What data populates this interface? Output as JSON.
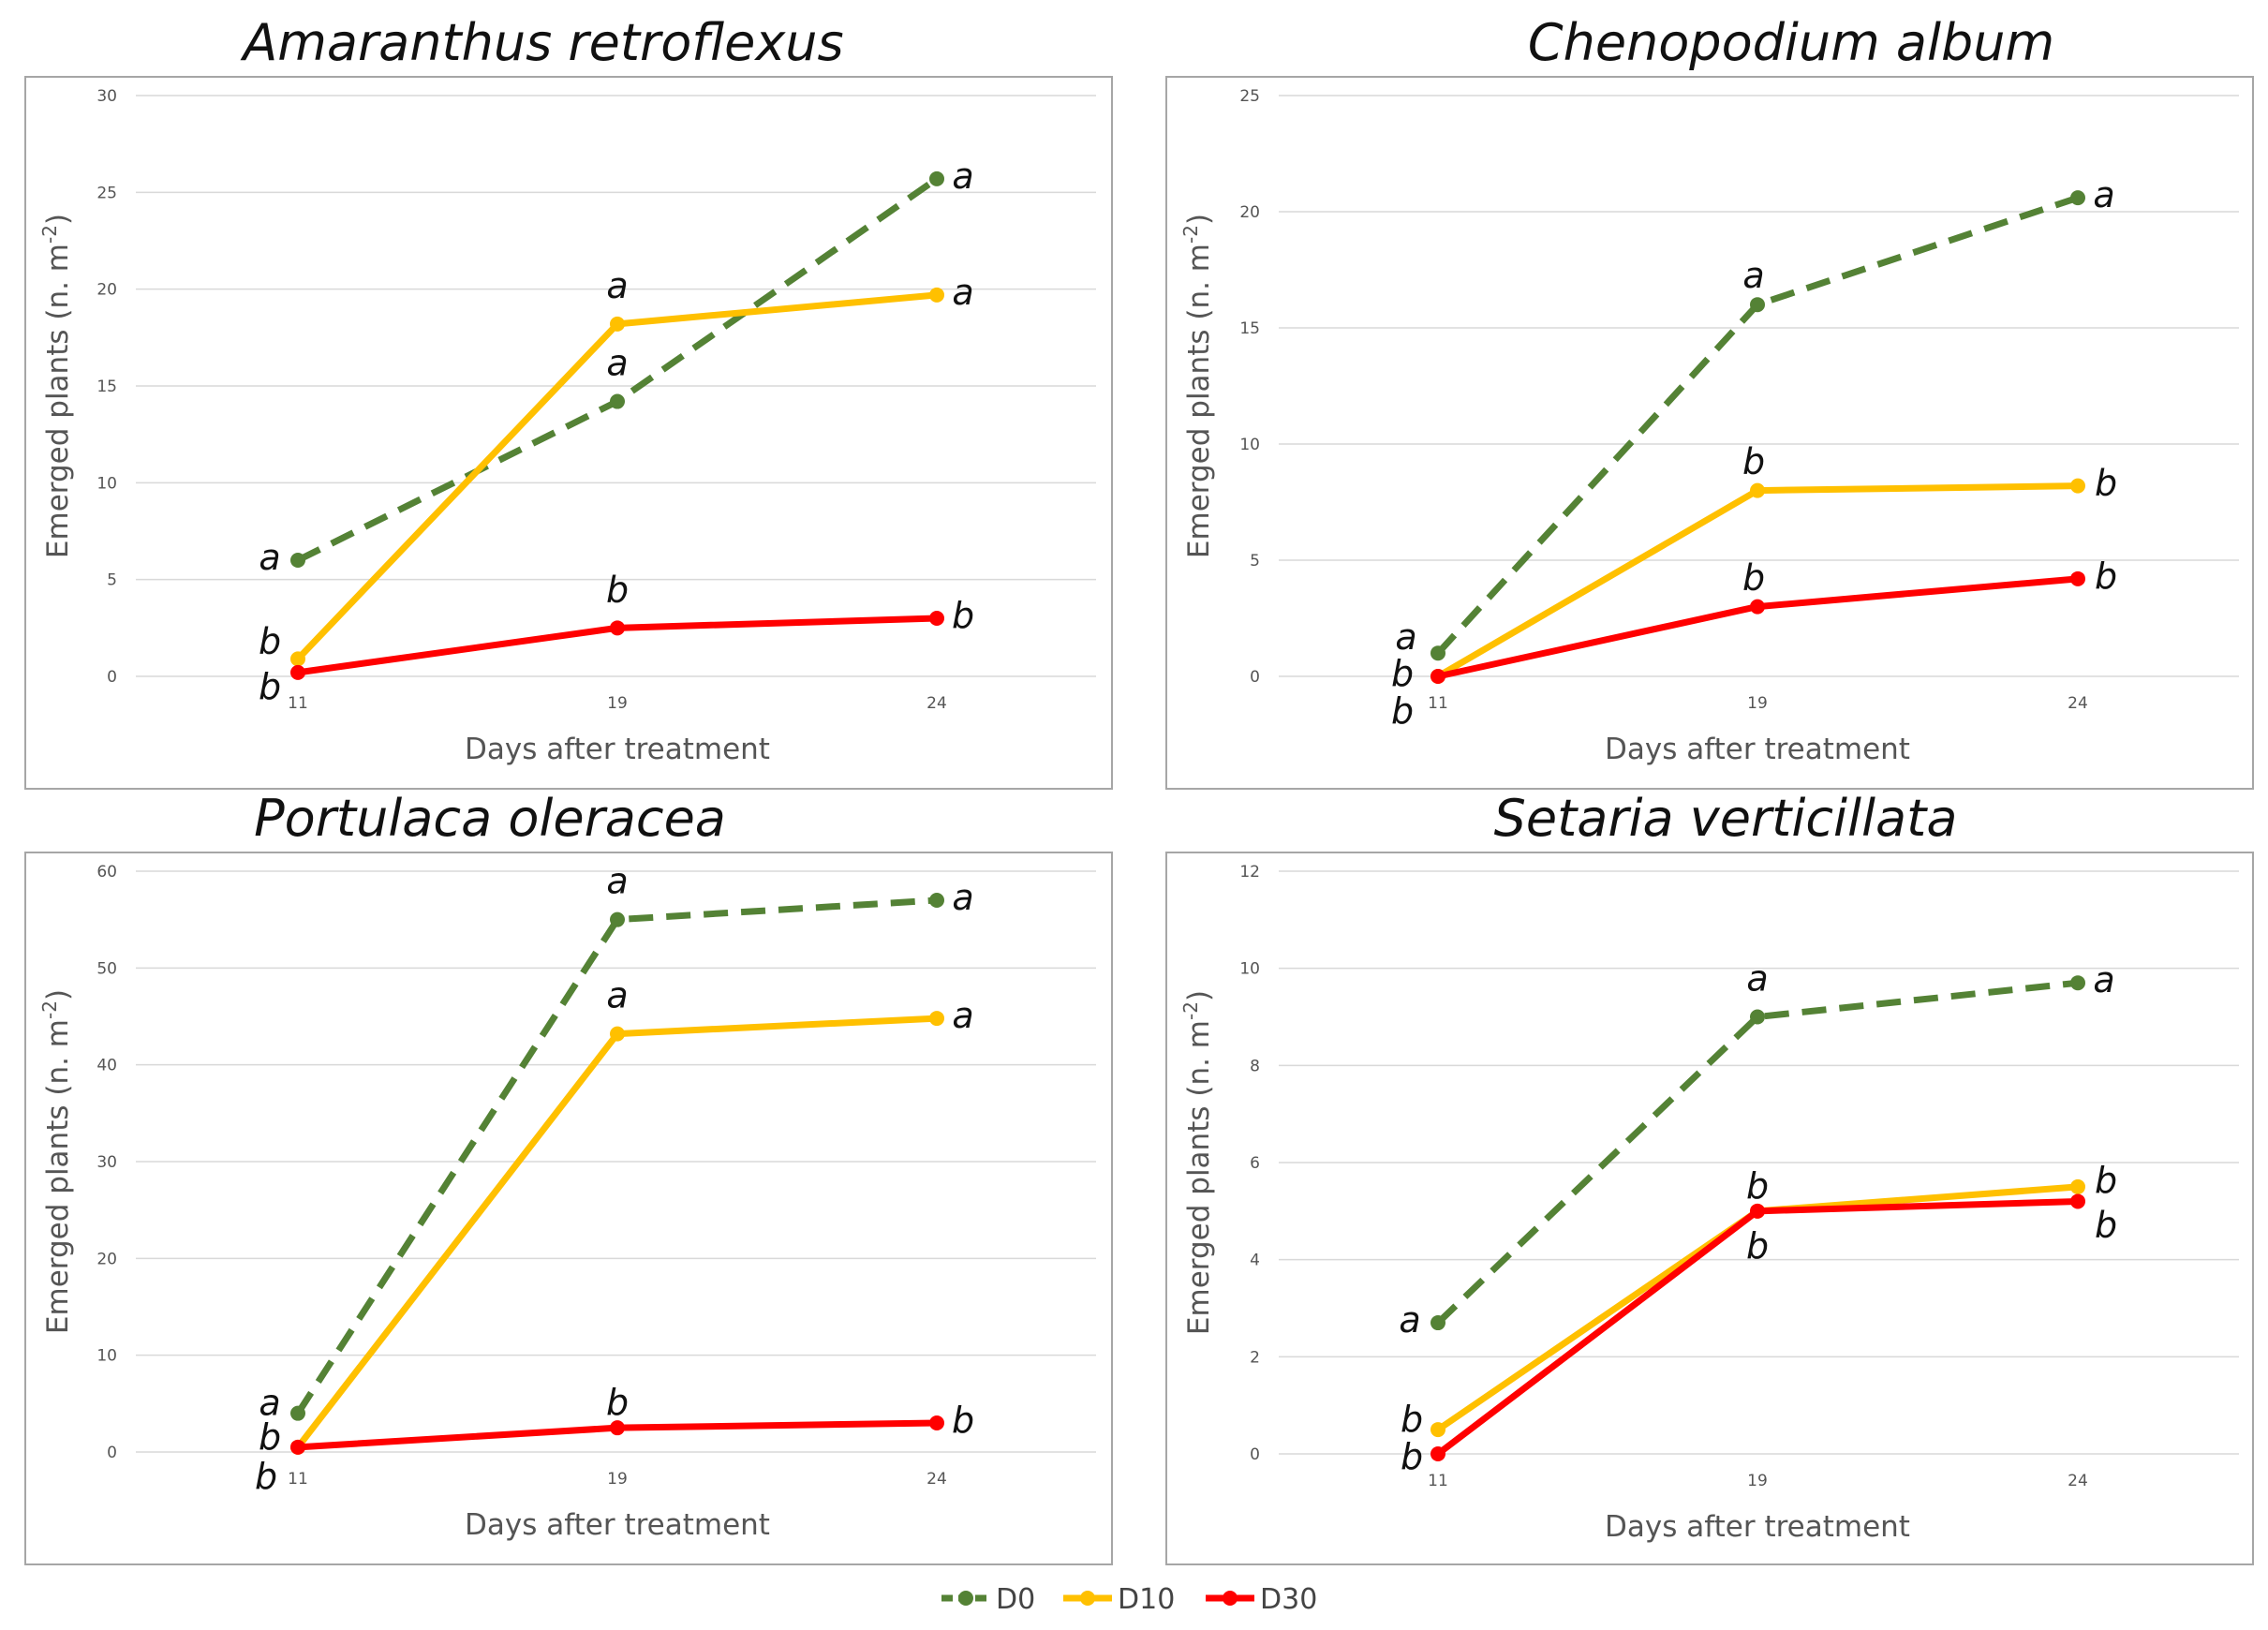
{
  "chart_data": {
    "type": "line",
    "legend": {
      "position": "bottom-center",
      "entries": [
        {
          "name": "D0",
          "color": "#548235",
          "dash": true
        },
        {
          "name": "D10",
          "color": "#FFC000",
          "dash": false
        },
        {
          "name": "D30",
          "color": "#FF0000",
          "dash": false
        }
      ]
    },
    "panels": [
      {
        "title": "Amaranthus retroflexus",
        "xlabel": "Days after treatment",
        "ylabel": "Emerged plants (n. m",
        "ylabel_sup": "-2",
        "ylabel_end": ")",
        "categories": [
          "11",
          "19",
          "24"
        ],
        "ylim": [
          0,
          30
        ],
        "yticks": [
          "0",
          "5",
          "10",
          "15",
          "20",
          "25",
          "30"
        ],
        "grid": true,
        "series": [
          {
            "name": "D0",
            "values": [
              6,
              14.2,
              25.7
            ],
            "letters": [
              "a",
              "a",
              "a"
            ]
          },
          {
            "name": "D10",
            "values": [
              0.9,
              18.2,
              19.7
            ],
            "letters": [
              "b",
              "a",
              "a"
            ]
          },
          {
            "name": "D30",
            "values": [
              0.2,
              2.5,
              3
            ],
            "letters": [
              "b",
              "b",
              "b"
            ]
          }
        ]
      },
      {
        "title": "Chenopodium album",
        "xlabel": "Days after treatment",
        "ylabel": "Emerged plants (n. m",
        "ylabel_sup": "-2",
        "ylabel_end": ")",
        "categories": [
          "11",
          "19",
          "24"
        ],
        "ylim": [
          0,
          25
        ],
        "yticks": [
          "0",
          "5",
          "10",
          "15",
          "20",
          "25"
        ],
        "grid": true,
        "series": [
          {
            "name": "D0",
            "values": [
              1,
              16,
              20.6
            ],
            "letters": [
              "a",
              "a",
              "a"
            ]
          },
          {
            "name": "D10",
            "values": [
              0,
              8,
              8.2
            ],
            "letters": [
              "b",
              "b",
              "b"
            ]
          },
          {
            "name": "D30",
            "values": [
              0,
              3,
              4.2
            ],
            "letters": [
              "b",
              "b",
              "b"
            ]
          }
        ]
      },
      {
        "title": "Portulaca oleracea",
        "xlabel": "Days after treatment",
        "ylabel": "Emerged plants (n. m",
        "ylabel_sup": "-2",
        "ylabel_end": ")",
        "categories": [
          "11",
          "19",
          "24"
        ],
        "ylim": [
          0,
          60
        ],
        "yticks": [
          "0",
          "10",
          "20",
          "30",
          "40",
          "50",
          "60"
        ],
        "grid": true,
        "series": [
          {
            "name": "D0",
            "values": [
              4,
              55,
              57
            ],
            "letters": [
              "a",
              "a",
              "a"
            ]
          },
          {
            "name": "D10",
            "values": [
              0.5,
              43.2,
              44.8
            ],
            "letters": [
              "b",
              "a",
              "a"
            ]
          },
          {
            "name": "D30",
            "values": [
              0.5,
              2.5,
              3
            ],
            "letters": [
              "b",
              "b",
              "b"
            ]
          }
        ]
      },
      {
        "title": "Setaria verticillata",
        "xlabel": "Days after treatment",
        "ylabel": "Emerged plants (n. m",
        "ylabel_sup": "-2",
        "ylabel_end": ")",
        "categories": [
          "11",
          "19",
          "24"
        ],
        "ylim": [
          0,
          12
        ],
        "yticks": [
          "0",
          "2",
          "4",
          "6",
          "8",
          "10",
          "12"
        ],
        "grid": true,
        "series": [
          {
            "name": "D0",
            "values": [
              2.7,
              9,
              9.7
            ],
            "letters": [
              "a",
              "a",
              "a"
            ]
          },
          {
            "name": "D10",
            "values": [
              0.5,
              5,
              5.5
            ],
            "letters": [
              "b",
              "b",
              "b"
            ]
          },
          {
            "name": "D30",
            "values": [
              0,
              5,
              5.2
            ],
            "letters": [
              "b",
              "b",
              "b"
            ]
          }
        ]
      }
    ]
  }
}
